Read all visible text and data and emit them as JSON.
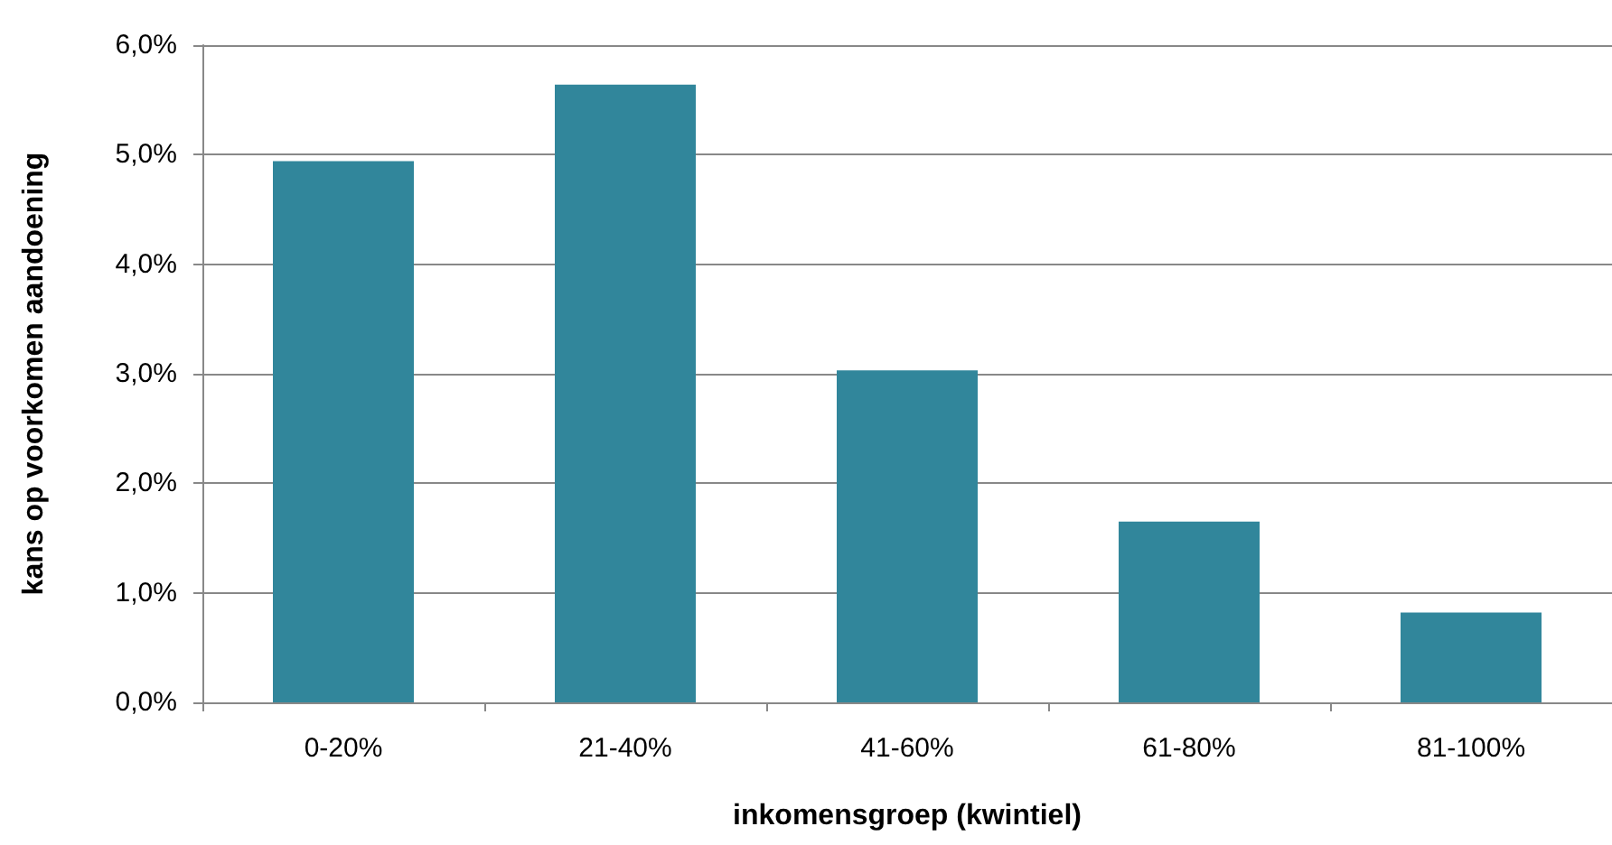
{
  "chart_data": {
    "type": "bar",
    "xlabel": "inkomensgroep (kwintiel)",
    "ylabel": "kans op voorkomen aandoening",
    "categories": [
      "0-20%",
      "21-40%",
      "41-60%",
      "61-80%",
      "81-100%"
    ],
    "values": [
      4.94,
      5.64,
      3.03,
      1.65,
      0.82
    ],
    "color": "#31869b",
    "ylim": [
      0,
      6
    ],
    "yticks": [
      {
        "value": 0,
        "label": "0,0%"
      },
      {
        "value": 1,
        "label": "1,0%"
      },
      {
        "value": 2,
        "label": "2,0%"
      },
      {
        "value": 3,
        "label": "3,0%"
      },
      {
        "value": 4,
        "label": "4,0%"
      },
      {
        "value": 5,
        "label": "5,0%"
      },
      {
        "value": 6,
        "label": "6,0%"
      }
    ],
    "grid": "y"
  }
}
